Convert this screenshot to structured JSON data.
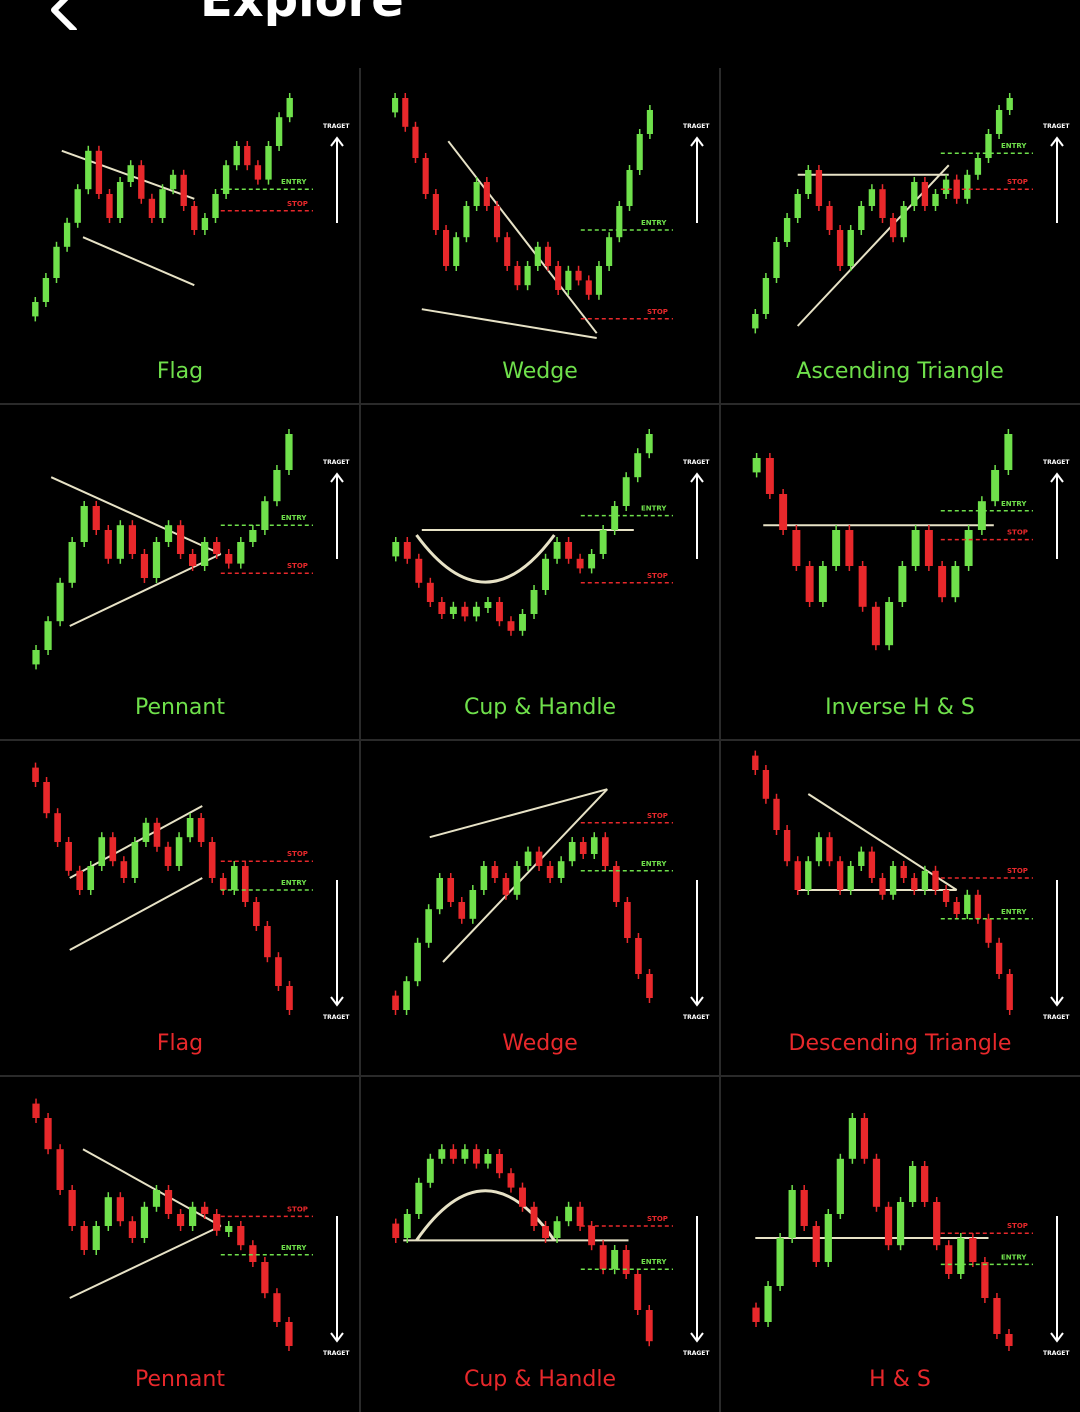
{
  "header": {
    "title": "Explore",
    "back_icon": "chevron-left-icon"
  },
  "colors": {
    "bull": "#6fe04b",
    "bear": "#e8282b",
    "line": "#e7e2c6",
    "divider": "#2a2a2a"
  },
  "labels": {
    "target": "TRAGET",
    "entry": "ENTRY",
    "stop": "STOP"
  },
  "patterns": [
    {
      "name": "Flag",
      "direction": "bullish"
    },
    {
      "name": "Wedge",
      "direction": "bullish"
    },
    {
      "name": "Ascending Triangle",
      "direction": "bullish"
    },
    {
      "name": "Pennant",
      "direction": "bullish"
    },
    {
      "name": "Cup & Handle",
      "direction": "bullish"
    },
    {
      "name": "Inverse H & S",
      "direction": "bullish"
    },
    {
      "name": "Flag",
      "direction": "bearish"
    },
    {
      "name": "Wedge",
      "direction": "bearish"
    },
    {
      "name": "Descending Triangle",
      "direction": "bearish"
    },
    {
      "name": "Pennant",
      "direction": "bearish"
    },
    {
      "name": "Cup & Handle",
      "direction": "bearish"
    },
    {
      "name": "H & S",
      "direction": "bearish"
    }
  ]
}
